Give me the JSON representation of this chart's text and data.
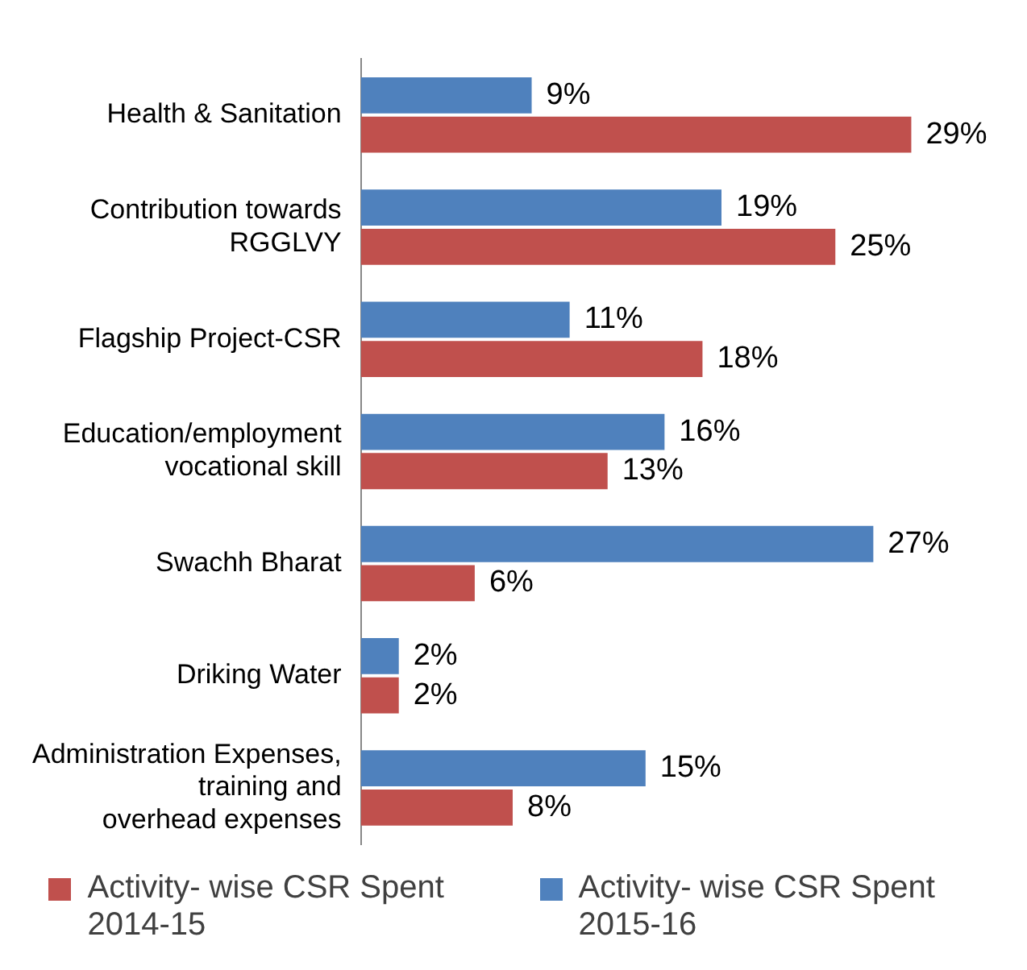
{
  "chart_data": {
    "type": "bar",
    "orientation": "horizontal",
    "categories": [
      "Health & Sanitation",
      "Contribution towards\nRGGLVY",
      "Flagship Project-CSR",
      "Education/employment\nvocational skill",
      "Swachh Bharat",
      "Driking Water",
      "Administration Expenses,\ntraining and\noverhead expenses"
    ],
    "series": [
      {
        "name": "Activity- wise CSR Spent 2014-15",
        "color": "#c0504d",
        "values": [
          29,
          25,
          18,
          13,
          6,
          2,
          8
        ],
        "value_labels": [
          "29%",
          "25%",
          "18%",
          "13%",
          "6%",
          "2%",
          "8%"
        ]
      },
      {
        "name": "Activity- wise CSR Spent 2015-16",
        "color": "#4f81bd",
        "values": [
          9,
          19,
          11,
          16,
          27,
          2,
          15
        ],
        "value_labels": [
          "9%",
          "19%",
          "11%",
          "16%",
          "27%",
          "2%",
          "15%"
        ]
      }
    ],
    "tick_labels": "y",
    "grid": false,
    "legend": "bottom"
  }
}
